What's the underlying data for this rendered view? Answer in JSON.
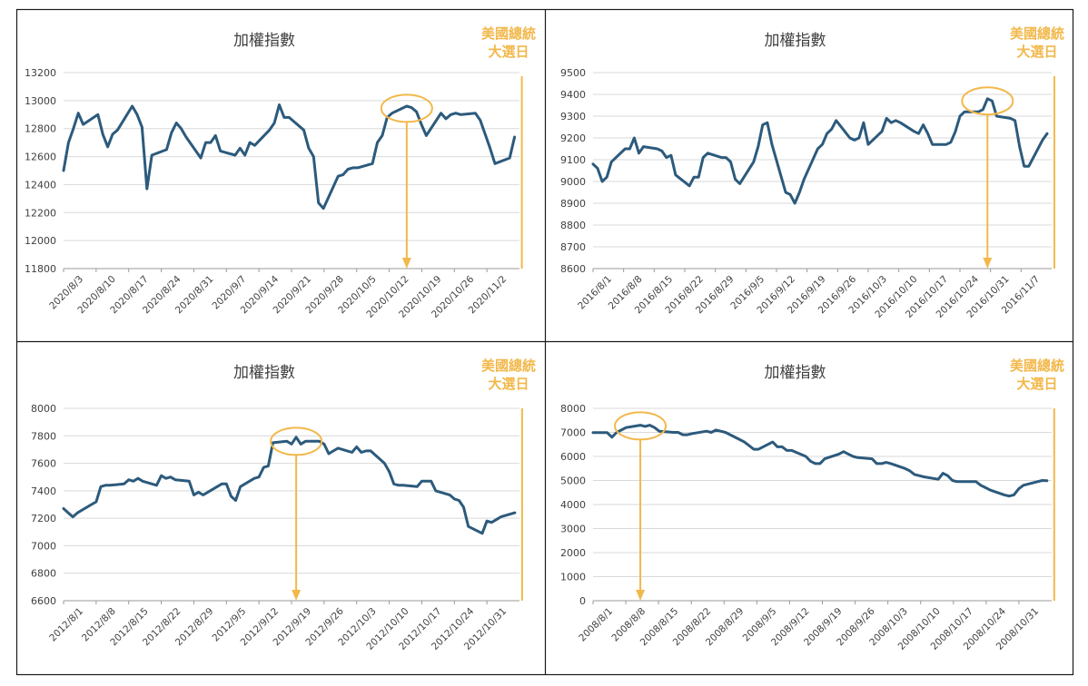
{
  "colors": {
    "line": "#2c5a7c",
    "accent": "#f2b84b",
    "grid": "#d9d9d9",
    "axis": "#9a9a9a",
    "text": "#404040",
    "border": "#1a1a1a"
  },
  "chart_data": [
    {
      "type": "line",
      "title": "加權指數",
      "annotation": "美國總統\n大選日",
      "ylim": [
        11800,
        13200
      ],
      "yticks": [
        11800,
        12000,
        12200,
        12400,
        12600,
        12800,
        13000,
        13200
      ],
      "xticks": [
        "2020/8/3",
        "2020/8/10",
        "2020/8/17",
        "2020/8/24",
        "2020/8/31",
        "2020/9/7",
        "2020/9/14",
        "2020/9/21",
        "2020/9/28",
        "2020/10/5",
        "2020/10/12",
        "2020/10/19",
        "2020/10/26",
        "2020/11/2"
      ],
      "xrange": [
        0,
        93
      ],
      "x": [
        0,
        1,
        2,
        3,
        4,
        7,
        8,
        9,
        10,
        11,
        14,
        15,
        16,
        17,
        18,
        21,
        22,
        23,
        24,
        25,
        28,
        29,
        30,
        31,
        32,
        35,
        36,
        37,
        38,
        39,
        42,
        43,
        44,
        45,
        46,
        49,
        50,
        51,
        52,
        53,
        56,
        57,
        58,
        59,
        60,
        63,
        64,
        65,
        66,
        67,
        70,
        71,
        72,
        73,
        74,
        77,
        78,
        79,
        80,
        81,
        84,
        85,
        86,
        87,
        88,
        91,
        92
      ],
      "values": [
        12500,
        12700,
        12800,
        12910,
        12830,
        12900,
        12760,
        12670,
        12760,
        12790,
        12960,
        12900,
        12810,
        12370,
        12610,
        12650,
        12770,
        12840,
        12800,
        12740,
        12590,
        12700,
        12700,
        12750,
        12640,
        12610,
        12660,
        12610,
        12700,
        12680,
        12790,
        12840,
        12970,
        12880,
        12880,
        12790,
        12660,
        12600,
        12270,
        12230,
        12460,
        12470,
        12510,
        12520,
        12520,
        12550,
        12700,
        12750,
        12880,
        12910,
        12960,
        12950,
        12920,
        12830,
        12750,
        12910,
        12870,
        12900,
        12910,
        12900,
        12910,
        12860,
        12760,
        12660,
        12550,
        12590,
        12740
      ],
      "highlight": {
        "x": 70,
        "y": 12945
      },
      "election_x": 92
    },
    {
      "type": "line",
      "title": "加權指數",
      "annotation": "美國總統\n大選日",
      "ylim": [
        8600,
        9500
      ],
      "yticks": [
        8600,
        8700,
        8800,
        8900,
        9000,
        9100,
        9200,
        9300,
        9400,
        9500
      ],
      "xticks": [
        "2016/8/1",
        "2016/8/8",
        "2016/8/15",
        "2016/8/22",
        "2016/8/29",
        "2016/9/5",
        "2016/9/12",
        "2016/9/19",
        "2016/9/26",
        "2016/10/3",
        "2016/10/10",
        "2016/10/17",
        "2016/10/24",
        "2016/10/31",
        "2016/11/7"
      ],
      "xrange": [
        0,
        100
      ],
      "x": [
        0,
        1,
        2,
        3,
        4,
        7,
        8,
        9,
        10,
        11,
        14,
        15,
        16,
        17,
        18,
        21,
        22,
        23,
        24,
        25,
        28,
        29,
        30,
        31,
        32,
        35,
        36,
        37,
        38,
        39,
        42,
        43,
        44,
        45,
        46,
        49,
        50,
        51,
        52,
        53,
        56,
        57,
        58,
        59,
        60,
        63,
        64,
        65,
        66,
        67,
        70,
        71,
        72,
        73,
        74,
        77,
        78,
        79,
        80,
        81,
        84,
        85,
        86,
        87,
        88,
        91,
        92,
        93,
        94,
        95,
        98,
        99
      ],
      "values": [
        9080,
        9060,
        9000,
        9020,
        9090,
        9150,
        9150,
        9200,
        9130,
        9160,
        9150,
        9140,
        9110,
        9120,
        9030,
        8980,
        9020,
        9020,
        9110,
        9130,
        9110,
        9110,
        9090,
        9010,
        8990,
        9090,
        9160,
        9260,
        9270,
        9170,
        8950,
        8940,
        8900,
        8950,
        9010,
        9150,
        9170,
        9220,
        9240,
        9280,
        9200,
        9190,
        9200,
        9270,
        9170,
        9230,
        9290,
        9270,
        9280,
        9270,
        9230,
        9220,
        9260,
        9220,
        9170,
        9170,
        9180,
        9230,
        9300,
        9320,
        9320,
        9330,
        9380,
        9370,
        9300,
        9290,
        9280,
        9160,
        9070,
        9070,
        9190,
        9220
      ],
      "highlight": {
        "x": 86,
        "y": 9370
      },
      "election_x": 99
    },
    {
      "type": "line",
      "title": "加權指數",
      "annotation": "美國總統\n大選日",
      "ylim": [
        6600,
        8000
      ],
      "yticks": [
        6600,
        6800,
        7000,
        7200,
        7400,
        7600,
        7800,
        8000
      ],
      "xticks": [
        "2012/8/1",
        "2012/8/8",
        "2012/8/15",
        "2012/8/22",
        "2012/8/29",
        "2012/9/5",
        "2012/9/12",
        "2012/9/19",
        "2012/9/26",
        "2012/10/3",
        "2012/10/10",
        "2012/10/17",
        "2012/10/24",
        "2012/10/31"
      ],
      "xrange": [
        0,
        98
      ],
      "x": [
        0,
        1,
        2,
        3,
        6,
        7,
        8,
        9,
        10,
        13,
        14,
        15,
        16,
        17,
        20,
        21,
        22,
        23,
        24,
        27,
        28,
        29,
        30,
        31,
        34,
        35,
        36,
        37,
        38,
        41,
        42,
        43,
        44,
        45,
        48,
        49,
        50,
        51,
        52,
        55,
        56,
        57,
        58,
        59,
        62,
        63,
        64,
        65,
        66,
        69,
        70,
        71,
        72,
        73,
        76,
        77,
        78,
        79,
        80,
        83,
        84,
        85,
        86,
        87,
        90,
        91,
        92,
        93,
        94,
        97
      ],
      "values": [
        7270,
        7240,
        7210,
        7240,
        7300,
        7320,
        7430,
        7440,
        7440,
        7450,
        7480,
        7470,
        7490,
        7470,
        7440,
        7510,
        7490,
        7500,
        7480,
        7470,
        7370,
        7390,
        7370,
        7390,
        7450,
        7450,
        7360,
        7330,
        7430,
        7490,
        7500,
        7570,
        7580,
        7750,
        7760,
        7740,
        7790,
        7740,
        7760,
        7760,
        7740,
        7670,
        7690,
        7710,
        7680,
        7720,
        7680,
        7690,
        7690,
        7600,
        7540,
        7450,
        7440,
        7440,
        7430,
        7470,
        7470,
        7470,
        7400,
        7370,
        7340,
        7330,
        7280,
        7140,
        7090,
        7180,
        7170,
        7190,
        7210,
        7240
      ],
      "highlight": {
        "x": 50,
        "y": 7760
      },
      "election_x": 97
    },
    {
      "type": "line",
      "title": "加權指數",
      "annotation": "美國總統\n大選日",
      "ylim": [
        0,
        8000
      ],
      "yticks": [
        0,
        1000,
        2000,
        3000,
        4000,
        5000,
        6000,
        7000,
        8000
      ],
      "xticks": [
        "2008/8/1",
        "2008/8/8",
        "2008/8/15",
        "2008/8/22",
        "2008/8/29",
        "2008/9/5",
        "2008/9/12",
        "2008/9/19",
        "2008/9/26",
        "2008/10/3",
        "2008/10/10",
        "2008/10/17",
        "2008/10/24",
        "2008/10/31"
      ],
      "xrange": [
        0,
        97
      ],
      "x": [
        0,
        3,
        4,
        5,
        6,
        7,
        10,
        11,
        12,
        13,
        14,
        17,
        18,
        19,
        20,
        21,
        24,
        25,
        26,
        27,
        28,
        31,
        32,
        33,
        34,
        35,
        38,
        39,
        40,
        41,
        42,
        45,
        46,
        47,
        48,
        49,
        52,
        53,
        54,
        55,
        56,
        59,
        60,
        61,
        62,
        63,
        66,
        67,
        68,
        69,
        70,
        73,
        74,
        75,
        76,
        77,
        80,
        81,
        82,
        83,
        84,
        87,
        88,
        89,
        90,
        91,
        94,
        95,
        96
      ],
      "values": [
        6990,
        6990,
        6800,
        7000,
        7100,
        7200,
        7300,
        7250,
        7300,
        7200,
        7050,
        7000,
        7000,
        6900,
        6900,
        6950,
        7050,
        7000,
        7100,
        7050,
        7000,
        6700,
        6600,
        6450,
        6300,
        6300,
        6600,
        6400,
        6400,
        6250,
        6250,
        6000,
        5800,
        5700,
        5700,
        5900,
        6100,
        6200,
        6100,
        6000,
        5950,
        5900,
        5700,
        5700,
        5750,
        5700,
        5500,
        5400,
        5250,
        5200,
        5150,
        5050,
        5300,
        5200,
        5000,
        4950,
        4950,
        4950,
        4800,
        4700,
        4600,
        4400,
        4350,
        4400,
        4650,
        4800,
        4950,
        5000,
        4990
      ],
      "highlight": {
        "x": 10,
        "y": 7270
      },
      "election_x": 96
    }
  ]
}
